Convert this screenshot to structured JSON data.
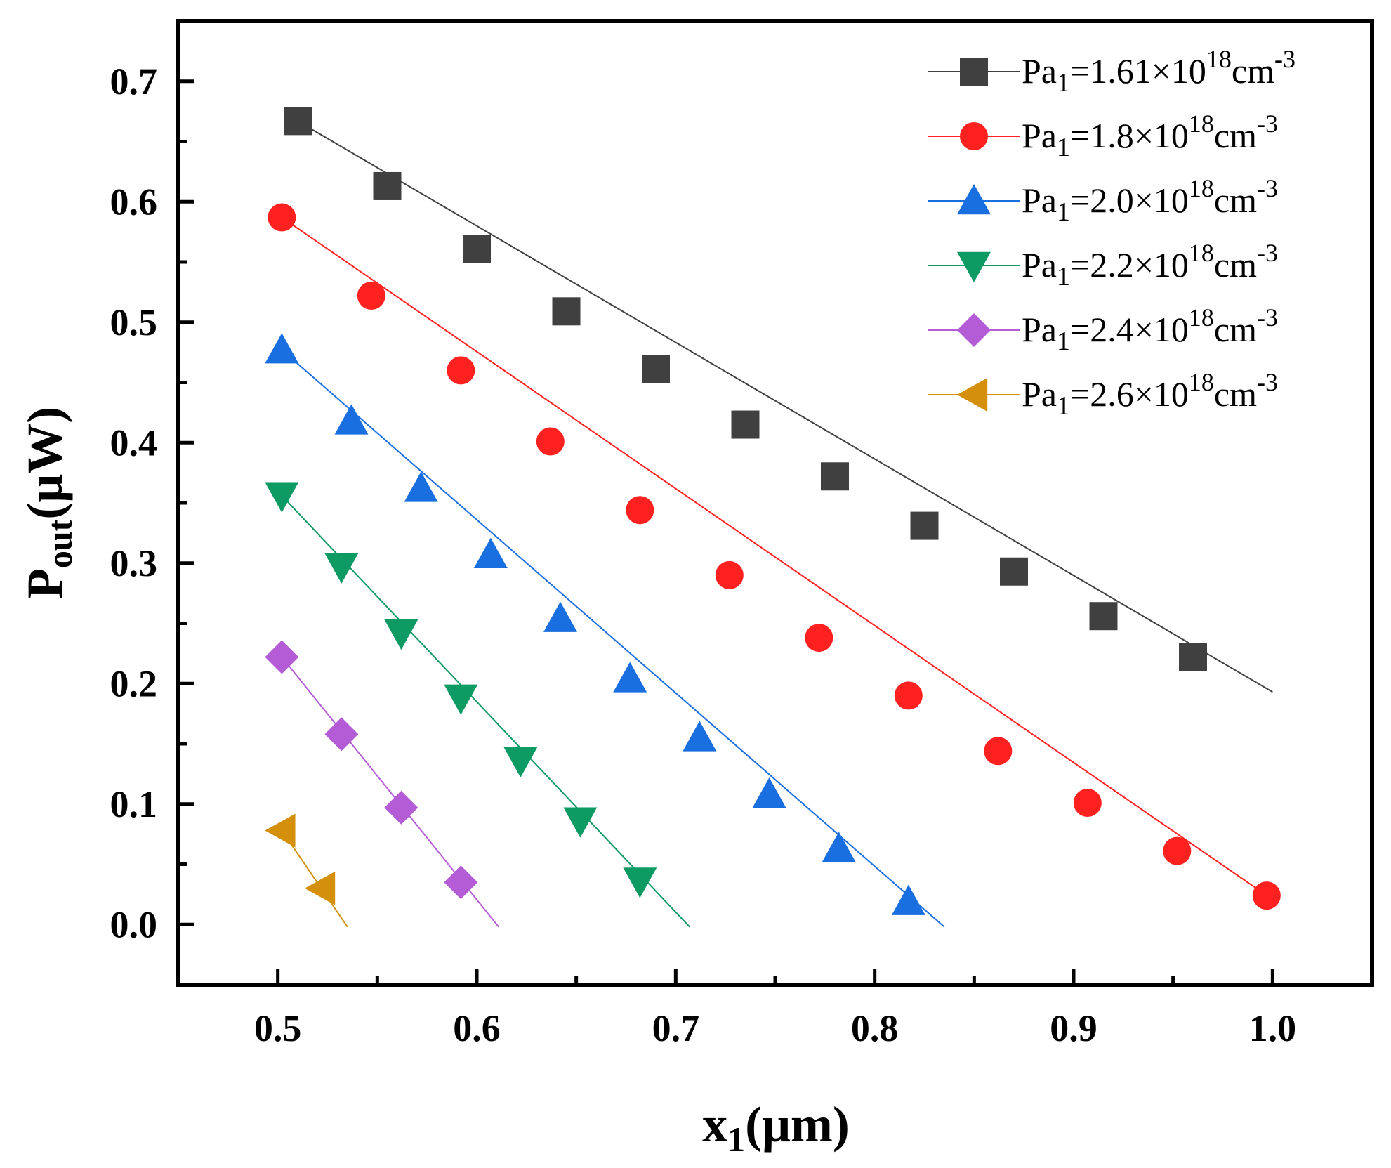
{
  "chart_data": {
    "type": "line",
    "xlabel": {
      "main": "x",
      "sub": "1",
      "tail": "(μm)"
    },
    "ylabel": {
      "main": "P",
      "sub": "out",
      "tail": "(μW)"
    },
    "xlim": [
      0.45,
      1.05
    ],
    "ylim": [
      -0.05,
      0.75
    ],
    "xticks": [
      0.5,
      0.6,
      0.7,
      0.8,
      0.9,
      1.0
    ],
    "xtick_labels": [
      "0.5",
      "0.6",
      "0.7",
      "0.8",
      "0.9",
      "1.0"
    ],
    "yticks": [
      0.0,
      0.1,
      0.2,
      0.3,
      0.4,
      0.5,
      0.6,
      0.7
    ],
    "ytick_labels": [
      "0.0",
      "0.1",
      "0.2",
      "0.3",
      "0.4",
      "0.5",
      "0.6",
      "0.7"
    ],
    "grid": false,
    "legend_position": "top-right",
    "series": [
      {
        "name": "Pa1=1.61×10^18cm^-3",
        "legend": {
          "pre": "Pa",
          "sub": "1",
          "mid": "=1.61×10",
          "sup1": "18",
          "unit": "cm",
          "sup2": "-3"
        },
        "color": "#404040",
        "marker": "square",
        "line": {
          "x": [
            0.51,
            1.0
          ],
          "y": [
            0.667,
            0.193
          ]
        },
        "x": [
          0.51,
          0.555,
          0.6,
          0.645,
          0.69,
          0.735,
          0.78,
          0.825,
          0.87,
          0.915,
          0.96
        ],
        "y": [
          0.667,
          0.613,
          0.561,
          0.509,
          0.461,
          0.415,
          0.372,
          0.331,
          0.293,
          0.256,
          0.222
        ]
      },
      {
        "name": "Pa1=1.8×10^18cm^-3",
        "legend": {
          "pre": "Pa",
          "sub": "1",
          "mid": "=1.8×10",
          "sup1": "18",
          "unit": "cm",
          "sup2": "-3"
        },
        "color": "#ff2020",
        "marker": "circle",
        "line": {
          "x": [
            0.502,
            0.998
          ],
          "y": [
            0.587,
            0.023
          ]
        },
        "x": [
          0.502,
          0.547,
          0.592,
          0.637,
          0.682,
          0.727,
          0.772,
          0.817,
          0.862,
          0.907,
          0.952,
          0.997
        ],
        "y": [
          0.587,
          0.522,
          0.46,
          0.401,
          0.344,
          0.29,
          0.238,
          0.19,
          0.144,
          0.101,
          0.061,
          0.024
        ]
      },
      {
        "name": "Pa1=2.0×10^18cm^-3",
        "legend": {
          "pre": "Pa",
          "sub": "1",
          "mid": "=2.0×10",
          "sup1": "18",
          "unit": "cm",
          "sup2": "-3"
        },
        "color": "#1a6fe0",
        "marker": "triangle-up",
        "line": {
          "x": [
            0.502,
            0.835
          ],
          "y": [
            0.477,
            -0.002
          ]
        },
        "x": [
          0.502,
          0.537,
          0.572,
          0.607,
          0.642,
          0.677,
          0.712,
          0.747,
          0.782,
          0.817
        ],
        "y": [
          0.477,
          0.418,
          0.362,
          0.307,
          0.254,
          0.204,
          0.155,
          0.108,
          0.063,
          0.019
        ]
      },
      {
        "name": "Pa1=2.2×10^18cm^-3",
        "legend": {
          "pre": "Pa",
          "sub": "1",
          "mid": "=2.2×10",
          "sup1": "18",
          "unit": "cm",
          "sup2": "-3"
        },
        "color": "#0e9a63",
        "marker": "triangle-down",
        "line": {
          "x": [
            0.502,
            0.707
          ],
          "y": [
            0.356,
            -0.002
          ]
        },
        "x": [
          0.502,
          0.532,
          0.562,
          0.592,
          0.622,
          0.652,
          0.682
        ],
        "y": [
          0.356,
          0.297,
          0.242,
          0.188,
          0.136,
          0.086,
          0.036
        ]
      },
      {
        "name": "Pa1=2.4×10^18cm^-3",
        "legend": {
          "pre": "Pa",
          "sub": "1",
          "mid": "=2.4×10",
          "sup1": "18",
          "unit": "cm",
          "sup2": "-3"
        },
        "color": "#b35cd6",
        "marker": "diamond",
        "line": {
          "x": [
            0.502,
            0.611
          ],
          "y": [
            0.222,
            -0.002
          ]
        },
        "x": [
          0.502,
          0.532,
          0.562,
          0.592
        ],
        "y": [
          0.222,
          0.158,
          0.097,
          0.035
        ]
      },
      {
        "name": "Pa1=2.6×10^18cm^-3",
        "legend": {
          "pre": "Pa",
          "sub": "1",
          "mid": "=2.6×10",
          "sup1": "18",
          "unit": "cm",
          "sup2": "-3"
        },
        "color": "#d4900a",
        "marker": "triangle-left",
        "line": {
          "x": [
            0.502,
            0.535
          ],
          "y": [
            0.078,
            -0.002
          ]
        },
        "x": [
          0.502,
          0.522
        ],
        "y": [
          0.078,
          0.03
        ]
      }
    ]
  }
}
